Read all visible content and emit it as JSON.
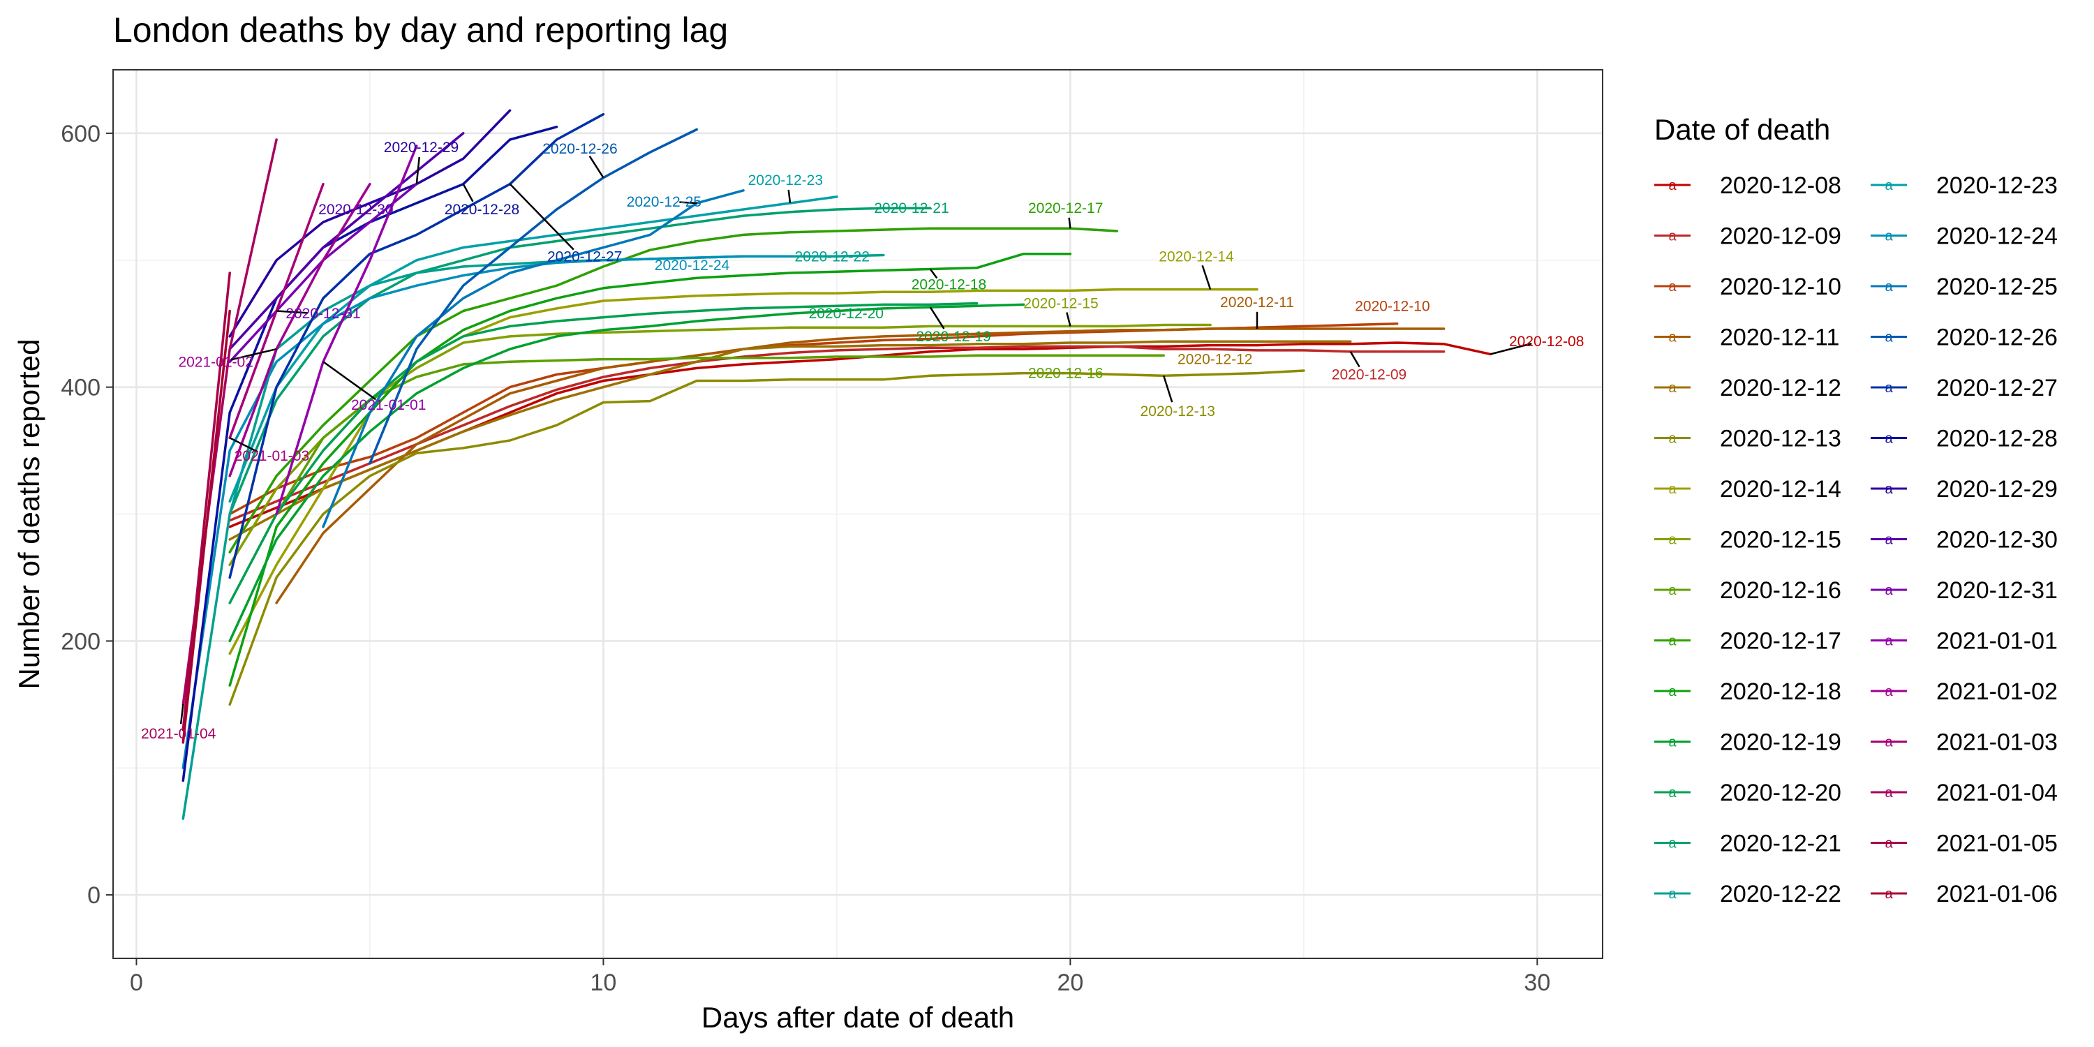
{
  "chart_data": {
    "type": "line",
    "title": "London deaths by day and reporting lag",
    "xlabel": "Days after date of death",
    "ylabel": "Number of deaths reported",
    "xlim": [
      -0.5,
      31.4
    ],
    "ylim": [
      -50,
      650
    ],
    "xticks": [
      0,
      10,
      20,
      30
    ],
    "xtick_labels": [
      "0",
      "10",
      "20",
      "30"
    ],
    "yticks": [
      0,
      200,
      400,
      600
    ],
    "ytick_labels": [
      "0",
      "200",
      "400",
      "600"
    ],
    "grid": true,
    "legend": {
      "title": "Date of death",
      "placement": "right",
      "columns": 2,
      "key_glyph": "a"
    },
    "series": [
      {
        "name": "2020-12-08",
        "color": "#C00000",
        "label": "2020-12-08",
        "label_at": [
          30.2,
          436
        ],
        "x": [
          2,
          3,
          4,
          5,
          6,
          7,
          8,
          9,
          10,
          11,
          12,
          13,
          14,
          15,
          16,
          17,
          18,
          19,
          20,
          21,
          22,
          23,
          24,
          25,
          26,
          27,
          28,
          29
        ],
        "y": [
          290,
          305,
          320,
          335,
          350,
          365,
          380,
          395,
          405,
          410,
          415,
          418,
          420,
          422,
          425,
          428,
          430,
          430,
          431,
          432,
          432,
          433,
          433,
          434,
          434,
          435,
          434,
          426
        ]
      },
      {
        "name": "2020-12-09",
        "color": "#BE2828",
        "label": "2020-12-09",
        "label_at": [
          26.4,
          410
        ],
        "x": [
          2,
          3,
          4,
          5,
          6,
          7,
          8,
          9,
          10,
          11,
          12,
          13,
          14,
          15,
          16,
          17,
          18,
          19,
          20,
          21,
          22,
          23,
          24,
          25,
          26,
          27,
          28
        ],
        "y": [
          295,
          310,
          325,
          340,
          355,
          370,
          385,
          398,
          408,
          415,
          420,
          424,
          427,
          429,
          430,
          431,
          431,
          432,
          432,
          432,
          430,
          430,
          429,
          429,
          428,
          428,
          428
        ]
      },
      {
        "name": "2020-12-10",
        "color": "#B8400A",
        "label": "2020-12-10",
        "label_at": [
          26.9,
          464
        ],
        "x": [
          2,
          3,
          4,
          5,
          6,
          7,
          8,
          9,
          10,
          11,
          12,
          13,
          14,
          15,
          16,
          17,
          18,
          19,
          20,
          21,
          22,
          23,
          24,
          25,
          26,
          27
        ],
        "y": [
          300,
          320,
          335,
          345,
          360,
          380,
          400,
          410,
          415,
          420,
          425,
          430,
          433,
          435,
          437,
          438,
          440,
          442,
          443,
          444,
          445,
          446,
          447,
          448,
          449,
          450
        ]
      },
      {
        "name": "2020-12-11",
        "color": "#A85A00",
        "label": "2020-12-11",
        "label_at": [
          24.0,
          467
        ],
        "x": [
          3,
          4,
          5,
          6,
          7,
          8,
          9,
          10,
          11,
          12,
          13,
          14,
          15,
          16,
          17,
          18,
          19,
          20,
          21,
          22,
          23,
          24,
          25,
          26,
          27,
          28
        ],
        "y": [
          230,
          285,
          320,
          355,
          375,
          395,
          405,
          415,
          420,
          425,
          430,
          435,
          438,
          440,
          441,
          442,
          443,
          444,
          445,
          445,
          446,
          446,
          446,
          446,
          446,
          446
        ]
      },
      {
        "name": "2020-12-12",
        "color": "#9C7000",
        "label": "2020-12-12",
        "label_at": [
          23.1,
          422
        ],
        "x": [
          2,
          3,
          4,
          5,
          6,
          7,
          8,
          9,
          10,
          11,
          12,
          13,
          14,
          15,
          16,
          17,
          18,
          19,
          20,
          21,
          22,
          23,
          24,
          25,
          26
        ],
        "y": [
          280,
          300,
          320,
          335,
          350,
          365,
          378,
          390,
          400,
          410,
          420,
          430,
          432,
          432,
          433,
          433,
          434,
          434,
          435,
          435,
          436,
          436,
          436,
          436,
          436
        ]
      },
      {
        "name": "2020-12-13",
        "color": "#8C8C00",
        "label": "2020-12-13",
        "label_at": [
          22.3,
          381
        ],
        "x": [
          2,
          3,
          4,
          5,
          6,
          7,
          8,
          9,
          10,
          11,
          12,
          13,
          14,
          15,
          16,
          17,
          18,
          19,
          20,
          21,
          22,
          23,
          24,
          25
        ],
        "y": [
          150,
          250,
          300,
          330,
          348,
          352,
          358,
          370,
          388,
          389,
          405,
          405,
          406,
          406,
          406,
          409,
          410,
          411,
          411,
          410,
          409,
          410,
          411,
          413
        ]
      },
      {
        "name": "2020-12-14",
        "color": "#9AA000",
        "label": "2020-12-14",
        "label_at": [
          22.7,
          503
        ],
        "x": [
          2,
          3,
          4,
          5,
          6,
          7,
          8,
          9,
          10,
          11,
          12,
          13,
          14,
          15,
          16,
          17,
          18,
          19,
          20,
          21,
          22,
          23,
          24
        ],
        "y": [
          190,
          260,
          320,
          380,
          420,
          440,
          455,
          462,
          468,
          470,
          472,
          473,
          474,
          474,
          475,
          475,
          476,
          476,
          476,
          477,
          477,
          477,
          477
        ]
      },
      {
        "name": "2020-12-15",
        "color": "#82A000",
        "label": "2020-12-15",
        "label_at": [
          19.8,
          466
        ],
        "x": [
          2,
          3,
          4,
          5,
          6,
          7,
          8,
          9,
          10,
          11,
          12,
          13,
          14,
          15,
          16,
          17,
          18,
          19,
          20,
          21,
          22,
          23
        ],
        "y": [
          260,
          320,
          360,
          390,
          415,
          435,
          440,
          442,
          443,
          444,
          445,
          446,
          447,
          447,
          447,
          448,
          448,
          448,
          448,
          448,
          449,
          449
        ]
      },
      {
        "name": "2020-12-16",
        "color": "#5CA000",
        "label": "2020-12-16",
        "label_at": [
          19.9,
          411
        ],
        "x": [
          3,
          4,
          5,
          6,
          7,
          8,
          9,
          10,
          11,
          12,
          13,
          14,
          15,
          16,
          17,
          18,
          19,
          20,
          21,
          22
        ],
        "y": [
          300,
          360,
          390,
          408,
          418,
          420,
          421,
          422,
          422,
          423,
          423,
          423,
          424,
          424,
          424,
          425,
          425,
          425,
          425,
          425
        ]
      },
      {
        "name": "2020-12-17",
        "color": "#2EA000",
        "label": "2020-12-17",
        "label_at": [
          19.9,
          541
        ],
        "x": [
          2,
          3,
          4,
          5,
          6,
          7,
          8,
          9,
          10,
          11,
          12,
          13,
          14,
          15,
          16,
          17,
          18,
          19,
          20,
          21
        ],
        "y": [
          270,
          330,
          370,
          405,
          440,
          460,
          470,
          480,
          495,
          508,
          515,
          520,
          522,
          523,
          524,
          525,
          525,
          525,
          525,
          523
        ]
      },
      {
        "name": "2020-12-18",
        "color": "#0EA010",
        "label": "2020-12-18",
        "label_at": [
          17.4,
          481
        ],
        "x": [
          2,
          3,
          4,
          5,
          6,
          7,
          8,
          9,
          10,
          11,
          12,
          13,
          14,
          15,
          16,
          17,
          18,
          19,
          20
        ],
        "y": [
          165,
          290,
          340,
          380,
          420,
          445,
          460,
          470,
          478,
          482,
          486,
          488,
          490,
          491,
          492,
          493,
          494,
          505,
          505
        ]
      },
      {
        "name": "2020-12-19",
        "color": "#00A030",
        "label": "2020-12-19",
        "label_at": [
          17.5,
          440
        ],
        "x": [
          2,
          3,
          4,
          5,
          6,
          7,
          8,
          9,
          10,
          11,
          12,
          13,
          14,
          15,
          16,
          17,
          18,
          19
        ],
        "y": [
          200,
          280,
          330,
          365,
          395,
          415,
          430,
          440,
          445,
          448,
          452,
          455,
          458,
          460,
          462,
          463,
          464,
          465
        ]
      },
      {
        "name": "2020-12-20",
        "color": "#00A050",
        "label": "2020-12-20",
        "label_at": [
          15.2,
          458
        ],
        "x": [
          2,
          3,
          4,
          5,
          6,
          7,
          8,
          9,
          10,
          11,
          12,
          13,
          14,
          15,
          16,
          17,
          18
        ],
        "y": [
          230,
          300,
          350,
          390,
          420,
          440,
          448,
          452,
          455,
          458,
          460,
          462,
          463,
          464,
          465,
          465,
          466
        ]
      },
      {
        "name": "2020-12-21",
        "color": "#00A070",
        "label": "2020-12-21",
        "label_at": [
          16.6,
          541
        ],
        "x": [
          2,
          3,
          4,
          5,
          6,
          7,
          8,
          9,
          10,
          11,
          12,
          13,
          14,
          15,
          16,
          17
        ],
        "y": [
          300,
          390,
          440,
          470,
          490,
          500,
          510,
          515,
          520,
          525,
          530,
          535,
          538,
          540,
          541,
          541
        ]
      },
      {
        "name": "2020-12-22",
        "color": "#00A090",
        "label": "2020-12-22",
        "label_at": [
          14.9,
          503
        ],
        "x": [
          1,
          2,
          3,
          4,
          5,
          6,
          7,
          8,
          9,
          10,
          11,
          12,
          13,
          14,
          15,
          16
        ],
        "y": [
          60,
          300,
          430,
          460,
          480,
          490,
          495,
          497,
          499,
          500,
          501,
          502,
          503,
          503,
          503,
          504
        ]
      },
      {
        "name": "2020-12-23",
        "color": "#00A0A8",
        "label": "2020-12-23",
        "label_at": [
          13.9,
          563
        ],
        "x": [
          2,
          3,
          4,
          5,
          6,
          7,
          8,
          9,
          10,
          11,
          12,
          13,
          14,
          15
        ],
        "y": [
          310,
          400,
          450,
          480,
          500,
          510,
          515,
          520,
          525,
          530,
          535,
          540,
          545,
          550
        ]
      },
      {
        "name": "2020-12-24",
        "color": "#0090B8",
        "label": "2020-12-24",
        "label_at": [
          11.9,
          496
        ],
        "x": [
          1,
          2,
          3,
          4,
          5,
          6,
          7,
          8,
          9,
          10,
          11,
          12,
          13,
          14
        ],
        "y": [
          100,
          350,
          420,
          450,
          470,
          480,
          488,
          494,
          498,
          500,
          501,
          502,
          503,
          503
        ]
      },
      {
        "name": "2020-12-25",
        "color": "#0078B8",
        "label": "2020-12-25",
        "label_at": [
          11.3,
          546
        ],
        "x": [
          4,
          5,
          6,
          7,
          8,
          9,
          10,
          11,
          12,
          13
        ],
        "y": [
          290,
          380,
          440,
          470,
          490,
          500,
          510,
          520,
          545,
          555
        ]
      },
      {
        "name": "2020-12-26",
        "color": "#0058B0",
        "label": "2020-12-26",
        "label_at": [
          9.5,
          588
        ],
        "x": [
          5,
          6,
          7,
          8,
          9,
          10,
          11,
          12
        ],
        "y": [
          340,
          430,
          480,
          510,
          540,
          565,
          585,
          603
        ]
      },
      {
        "name": "2020-12-27",
        "color": "#0030A8",
        "label": "2020-12-27",
        "label_at": [
          9.6,
          503
        ],
        "x": [
          2,
          3,
          4,
          5,
          6,
          7,
          8,
          9,
          10
        ],
        "y": [
          250,
          400,
          470,
          505,
          520,
          540,
          560,
          595,
          615
        ]
      },
      {
        "name": "2020-12-28",
        "color": "#0A10A0",
        "label": "2020-12-28",
        "label_at": [
          7.4,
          540
        ],
        "x": [
          1,
          2,
          3,
          4,
          5,
          6,
          7,
          8,
          9
        ],
        "y": [
          90,
          380,
          470,
          510,
          530,
          545,
          560,
          595,
          605
        ]
      },
      {
        "name": "2020-12-29",
        "color": "#2800A0",
        "label": "2020-12-29",
        "label_at": [
          6.1,
          589
        ],
        "x": [
          2,
          3,
          4,
          5,
          6,
          7,
          8
        ],
        "y": [
          440,
          500,
          530,
          545,
          560,
          580,
          618
        ]
      },
      {
        "name": "2020-12-30",
        "color": "#5000A8",
        "label": "2020-12-30",
        "label_at": [
          4.7,
          540
        ],
        "x": [
          2,
          3,
          4,
          5,
          6,
          7
        ],
        "y": [
          430,
          470,
          510,
          540,
          570,
          600
        ]
      },
      {
        "name": "2020-12-31",
        "color": "#7800B0",
        "label": "2020-12-31",
        "label_at": [
          4.0,
          458
        ],
        "x": [
          2,
          3,
          4,
          5,
          6
        ],
        "y": [
          420,
          460,
          500,
          530,
          560
        ]
      },
      {
        "name": "2021-01-01",
        "color": "#9400A8",
        "label": "2021-01-01",
        "label_at": [
          5.4,
          386
        ],
        "x": [
          3,
          4,
          5,
          6
        ],
        "y": [
          300,
          420,
          500,
          590
        ]
      },
      {
        "name": "2021-01-02",
        "color": "#A00090",
        "label": "2021-01-02",
        "label_at": [
          1.7,
          420
        ],
        "x": [
          2,
          3,
          4,
          5
        ],
        "y": [
          330,
          430,
          500,
          560
        ]
      },
      {
        "name": "2021-01-03",
        "color": "#A80078",
        "label": "2021-01-03",
        "label_at": [
          2.9,
          346
        ],
        "x": [
          2,
          3,
          4
        ],
        "y": [
          360,
          460,
          560
        ]
      },
      {
        "name": "2021-01-04",
        "color": "#A80060",
        "label": "2021-01-04",
        "label_at": [
          0.9,
          127
        ],
        "x": [
          1,
          2,
          3
        ],
        "y": [
          150,
          430,
          595
        ]
      },
      {
        "name": "2021-01-05",
        "color": "#A80048",
        "label": "",
        "label_at": [
          0,
          0
        ],
        "x": [
          1,
          2
        ],
        "y": [
          130,
          490
        ]
      },
      {
        "name": "2021-01-06",
        "color": "#A80030",
        "label": "",
        "label_at": [
          0,
          0
        ],
        "x": [
          1,
          2
        ],
        "y": [
          120,
          460
        ]
      }
    ]
  }
}
